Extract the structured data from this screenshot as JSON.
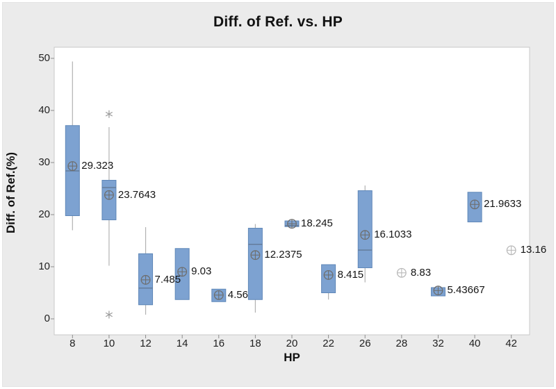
{
  "title": "Diff. of Ref. vs. HP",
  "colors": {
    "background": "#ebebeb",
    "plot_bg": "#ffffff",
    "plot_border": "#c9c9c9",
    "tick": "#8c8c8c",
    "box_fill": "#7da2d1",
    "box_border": "#5f87b8",
    "median": "#5f7590",
    "whisker": "#b2b2b2",
    "mean_marker": "#6e6e6e",
    "ghost_marker": "#b9b9b9",
    "outlier": "#9a9a9a",
    "text": "#141414"
  },
  "chart_data": {
    "type": "boxplot",
    "title": "Diff. of Ref. vs. HP",
    "xlabel": "HP",
    "ylabel": "Diff. of Ref.(%)",
    "ylim": [
      0,
      50
    ],
    "yticks": [
      0,
      10,
      20,
      30,
      40,
      50
    ],
    "categories": [
      "8",
      "10",
      "12",
      "14",
      "16",
      "18",
      "20",
      "22",
      "26",
      "28",
      "32",
      "40",
      "42"
    ],
    "legend": "none",
    "grid": false,
    "groups": [
      {
        "hp": "8",
        "mean": 29.323,
        "mean_label": "29.323",
        "q1": 19.8,
        "median": 28.4,
        "q3": 37.1,
        "whisker_low": 17.0,
        "whisker_high": 49.4,
        "outliers": [],
        "point_only": false
      },
      {
        "hp": "10",
        "mean": 23.7643,
        "mean_label": "23.7643",
        "q1": 19.0,
        "median": 25.2,
        "q3": 26.6,
        "whisker_low": 10.2,
        "whisker_high": 36.8,
        "outliers": [
          39.3,
          0.8
        ],
        "point_only": false
      },
      {
        "hp": "12",
        "mean": 7.485,
        "mean_label": "7.485",
        "q1": 2.7,
        "median": 5.9,
        "q3": 12.5,
        "whisker_low": 0.8,
        "whisker_high": 17.6,
        "outliers": [],
        "point_only": false
      },
      {
        "hp": "14",
        "mean": 9.03,
        "mean_label": "9.03",
        "q1": 3.7,
        "median": null,
        "q3": 13.5,
        "whisker_low": 3.7,
        "whisker_high": 13.5,
        "outliers": [],
        "point_only": false
      },
      {
        "hp": "16",
        "mean": 4.56,
        "mean_label": "4.56",
        "q1": 3.3,
        "median": null,
        "q3": 5.7,
        "whisker_low": 3.3,
        "whisker_high": 5.7,
        "outliers": [],
        "point_only": false
      },
      {
        "hp": "18",
        "mean": 12.2375,
        "mean_label": "12.2375",
        "q1": 3.7,
        "median": 14.3,
        "q3": 17.4,
        "whisker_low": 1.2,
        "whisker_high": 18.2,
        "outliers": [],
        "point_only": false
      },
      {
        "hp": "20",
        "mean": 18.245,
        "mean_label": "18.245",
        "q1": 17.7,
        "median": 17.9,
        "q3": 18.8,
        "whisker_low": 17.7,
        "whisker_high": 18.8,
        "outliers": [],
        "point_only": false
      },
      {
        "hp": "22",
        "mean": 8.415,
        "mean_label": "8.415",
        "q1": 5.0,
        "median": null,
        "q3": 10.4,
        "whisker_low": 3.7,
        "whisker_high": 10.4,
        "outliers": [],
        "point_only": false
      },
      {
        "hp": "26",
        "mean": 16.1033,
        "mean_label": "16.1033",
        "q1": 9.8,
        "median": 13.2,
        "q3": 24.6,
        "whisker_low": 7.0,
        "whisker_high": 25.6,
        "outliers": [],
        "point_only": false
      },
      {
        "hp": "28",
        "mean": 8.83,
        "mean_label": "8.83",
        "q1": null,
        "median": null,
        "q3": null,
        "whisker_low": null,
        "whisker_high": null,
        "outliers": [],
        "point_only": true
      },
      {
        "hp": "32",
        "mean": 5.43667,
        "mean_label": "5.43667",
        "q1": 4.4,
        "median": null,
        "q3": 6.0,
        "whisker_low": 4.4,
        "whisker_high": 6.0,
        "outliers": [],
        "point_only": false
      },
      {
        "hp": "40",
        "mean": 21.9633,
        "mean_label": "21.9633",
        "q1": 18.6,
        "median": null,
        "q3": 24.3,
        "whisker_low": 18.6,
        "whisker_high": 24.3,
        "outliers": [],
        "point_only": false
      },
      {
        "hp": "42",
        "mean": 13.16,
        "mean_label": "13.16",
        "q1": null,
        "median": null,
        "q3": null,
        "whisker_low": null,
        "whisker_high": null,
        "outliers": [],
        "point_only": true
      }
    ]
  }
}
